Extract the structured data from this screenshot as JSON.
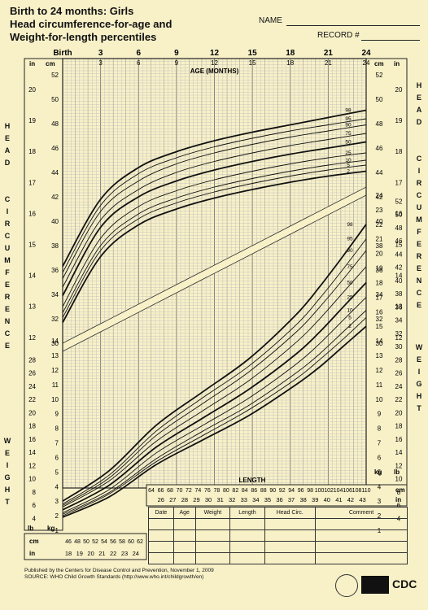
{
  "header": {
    "title_lines": [
      "Birth to 24 months: Girls",
      "Head circumference-for-age and",
      "Weight-for-length percentiles"
    ],
    "name_label": "NAME",
    "record_label": "RECORD #"
  },
  "side_labels": {
    "left_head": "HEAD CIRCUMFERENCE",
    "right_head": "HEAD CIRCUMFERENCE",
    "left_weight": "WEIGHT",
    "right_weight": "WEIGHT"
  },
  "axis": {
    "age_title": "AGE (MONTHS)",
    "length_title": "LENGTH",
    "age_top_ticks": [
      "Birth",
      "3",
      "6",
      "9",
      "12",
      "15",
      "18",
      "21",
      "24"
    ],
    "age_inner_ticks": [
      "3",
      "6",
      "9",
      "12",
      "15",
      "18",
      "21",
      "24"
    ],
    "unit_in": "in",
    "unit_cm": "cm",
    "unit_kg": "kg",
    "unit_lb": "lb",
    "hc_cm": [
      "52",
      "50",
      "48",
      "46",
      "44",
      "42",
      "40",
      "38",
      "36",
      "34",
      "32",
      "30"
    ],
    "hc_in": [
      "20",
      "19",
      "18",
      "17",
      "16",
      "15",
      "14",
      "13",
      "12"
    ],
    "wt_kg": [
      "24",
      "23",
      "22",
      "21",
      "20",
      "19",
      "18",
      "17",
      "16",
      "15",
      "14",
      "13",
      "12",
      "11",
      "10",
      "9",
      "8",
      "7",
      "6",
      "5",
      "4",
      "3",
      "2",
      "1"
    ],
    "wt_lb_left": [
      "28",
      "26",
      "24",
      "22",
      "20",
      "18",
      "16",
      "14",
      "12",
      "10",
      "8",
      "6",
      "4"
    ],
    "wt_lb_right": [
      "52",
      "50",
      "48",
      "46",
      "44",
      "42",
      "40",
      "38",
      "36",
      "34",
      "32",
      "30",
      "28",
      "26",
      "24",
      "22",
      "20",
      "18",
      "16",
      "14",
      "12",
      "10",
      "8",
      "6",
      "4"
    ],
    "len_cm_right": [
      "64",
      "66",
      "68",
      "70",
      "72",
      "74",
      "76",
      "78",
      "80",
      "82",
      "84",
      "86",
      "88",
      "90",
      "92",
      "94",
      "96",
      "98",
      "100",
      "102",
      "104",
      "106",
      "108",
      "110"
    ],
    "len_in_right": [
      "26",
      "27",
      "28",
      "29",
      "30",
      "31",
      "32",
      "33",
      "34",
      "35",
      "36",
      "37",
      "38",
      "39",
      "40",
      "41",
      "42",
      "43"
    ],
    "len_cm_left": [
      "46",
      "48",
      "50",
      "52",
      "54",
      "56",
      "58",
      "60",
      "62"
    ],
    "len_in_left": [
      "18",
      "19",
      "20",
      "21",
      "22",
      "23",
      "24"
    ]
  },
  "table": {
    "columns": [
      "Date",
      "Age",
      "Weight",
      "Length",
      "Head Circ.",
      "Comment"
    ],
    "empty_rows": 4
  },
  "footer": {
    "line1": "Published by the Centers for Disease Control and Prevention, November 1, 2009",
    "line2": "SOURCE:  WHO Child Growth Standards (http://www.who.int/childgrowth/en)",
    "logo": "CDC"
  },
  "colors": {
    "paper": "#f8f1c8",
    "ink": "#111111",
    "grid": "#999999"
  },
  "chart_data": [
    {
      "type": "line",
      "title": "Head circumference-for-age",
      "xlabel": "AGE (MONTHS)",
      "ylabel": "HEAD CIRCUMFERENCE",
      "xlim": [
        0,
        24
      ],
      "ylim": [
        30,
        52
      ],
      "x": [
        0,
        3,
        6,
        9,
        12,
        15,
        18,
        21,
        24
      ],
      "series": [
        {
          "name": "98",
          "values": [
            36.3,
            41.8,
            44.4,
            45.7,
            46.6,
            47.3,
            47.9,
            48.5,
            49.1
          ]
        },
        {
          "name": "95",
          "values": [
            35.8,
            41.3,
            43.9,
            45.2,
            46.1,
            46.8,
            47.4,
            47.9,
            48.4
          ]
        },
        {
          "name": "90",
          "values": [
            35.3,
            40.8,
            43.3,
            44.7,
            45.6,
            46.3,
            46.9,
            47.4,
            47.9
          ]
        },
        {
          "name": "75",
          "values": [
            34.6,
            40.1,
            42.6,
            44.0,
            44.9,
            45.6,
            46.2,
            46.7,
            47.2
          ]
        },
        {
          "name": "50",
          "values": [
            33.9,
            39.5,
            42.0,
            43.3,
            44.2,
            44.9,
            45.5,
            46.0,
            46.5
          ]
        },
        {
          "name": "25",
          "values": [
            33.0,
            38.6,
            41.2,
            42.5,
            43.4,
            44.1,
            44.7,
            45.2,
            45.6
          ]
        },
        {
          "name": "10",
          "values": [
            32.5,
            38.0,
            40.6,
            41.9,
            42.8,
            43.5,
            44.1,
            44.6,
            45.0
          ]
        },
        {
          "name": "5",
          "values": [
            32.1,
            37.6,
            40.2,
            41.5,
            42.4,
            43.1,
            43.7,
            44.2,
            44.6
          ]
        },
        {
          "name": "2",
          "values": [
            31.7,
            37.1,
            39.7,
            41.0,
            41.9,
            42.6,
            43.2,
            43.7,
            44.1
          ]
        }
      ]
    },
    {
      "type": "line",
      "title": "Weight-for-length",
      "xlabel": "LENGTH",
      "ylabel": "WEIGHT",
      "xlim": [
        45,
        110
      ],
      "ylim": [
        1,
        24
      ],
      "x": [
        45,
        55,
        65,
        75,
        85,
        95,
        100,
        105,
        110
      ],
      "series": [
        {
          "name": "98",
          "values": [
            3.0,
            5.1,
            8.2,
            10.5,
            12.8,
            15.8,
            17.7,
            19.8,
            22.0
          ]
        },
        {
          "name": "95",
          "values": [
            2.8,
            4.8,
            7.8,
            10.1,
            12.3,
            15.1,
            16.9,
            18.9,
            21.0
          ]
        },
        {
          "name": "90",
          "values": [
            2.7,
            4.6,
            7.5,
            9.7,
            11.9,
            14.6,
            16.3,
            18.2,
            20.2
          ]
        },
        {
          "name": "75",
          "values": [
            2.6,
            4.4,
            7.1,
            9.2,
            11.3,
            13.9,
            15.5,
            17.3,
            19.1
          ]
        },
        {
          "name": "50",
          "values": [
            2.4,
            4.1,
            6.7,
            8.7,
            10.7,
            13.1,
            14.6,
            16.3,
            18.0
          ]
        },
        {
          "name": "25",
          "values": [
            2.2,
            3.8,
            6.3,
            8.2,
            10.1,
            12.4,
            13.8,
            15.4,
            17.0
          ]
        },
        {
          "name": "10",
          "values": [
            2.1,
            3.6,
            5.9,
            7.8,
            9.6,
            11.8,
            13.1,
            14.6,
            16.1
          ]
        },
        {
          "name": "5",
          "values": [
            2.0,
            3.5,
            5.7,
            7.5,
            9.3,
            11.4,
            12.7,
            14.1,
            15.6
          ]
        },
        {
          "name": "2",
          "values": [
            1.9,
            3.3,
            5.5,
            7.2,
            8.9,
            11.0,
            12.2,
            13.6,
            15.0
          ]
        }
      ]
    }
  ]
}
